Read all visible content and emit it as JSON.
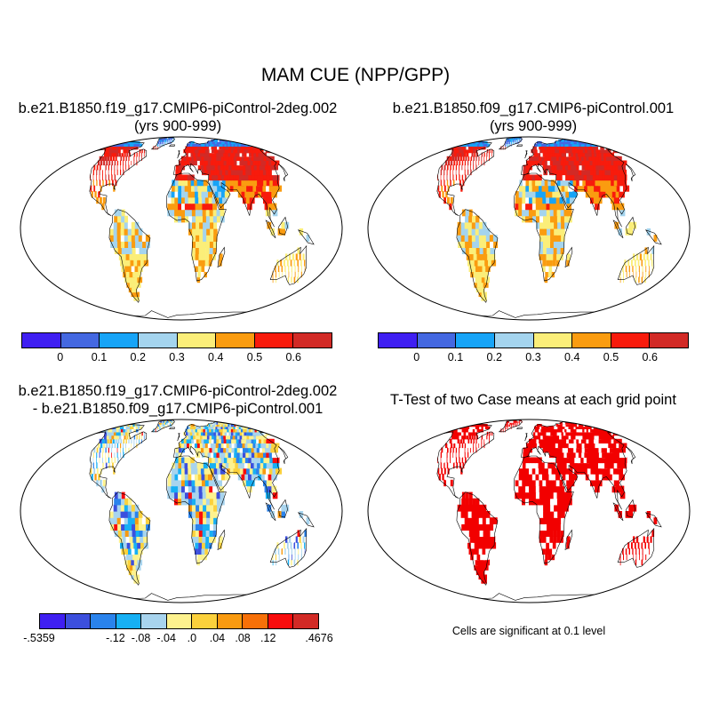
{
  "title": "MAM CUE (NPP/GPP)",
  "panels": [
    {
      "title_line1": "b.e21.B1850.f19_g17.CMIP6-piControl-2deg.002",
      "title_line2": "(yrs 900-999)"
    },
    {
      "title_line1": "b.e21.B1850.f09_g17.CMIP6-piControl.001",
      "title_line2": "(yrs 900-999)"
    },
    {
      "title_line1": "b.e21.B1850.f19_g17.CMIP6-piControl-2deg.002",
      "title_line2": "- b.e21.B1850.f09_g17.CMIP6-piControl.001"
    },
    {
      "title_line1": "T-Test of two Case means at each grid point"
    }
  ],
  "colorbar_cue": {
    "colors": [
      "#3f1ff2",
      "#4468e1",
      "#17a4f7",
      "#a4d4ee",
      "#fbee79",
      "#fa9c10",
      "#f81b0c",
      "#d22a26"
    ],
    "labels": [
      "0",
      "0.1",
      "0.2",
      "0.3",
      "0.4",
      "0.5",
      "0.6"
    ]
  },
  "colorbar_diff": {
    "colors": [
      "#3f1ff2",
      "#3c4fdd",
      "#2a83ec",
      "#17b0f4",
      "#a8d4ee",
      "#fdf28e",
      "#fbd13c",
      "#f99a10",
      "#f77008",
      "#f80c0c",
      "#d22a26"
    ],
    "labels": [
      "-.5359",
      "-.12",
      "-.08",
      "-.04",
      ".0",
      ".04",
      ".08",
      ".12",
      ".4676"
    ]
  },
  "significance_note": "Cells are significant at 0.1 level",
  "colors": {
    "significant": "#f20000",
    "land_outline": "#000000"
  }
}
